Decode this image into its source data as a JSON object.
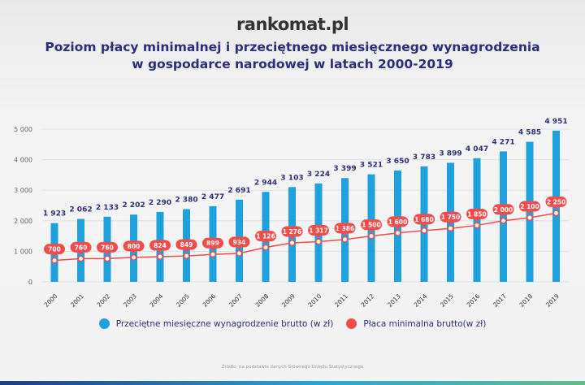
{
  "logo": "rankomat.pl",
  "title_line1": "Poziom płacy minimalnej i przeciętnego miesięcznego wynagrodzenia",
  "title_line2": "w gospodarce narodowej w latach 2000-2019",
  "source": "Źródło: na podstawie danych Głównego Urzędu Statystycznego",
  "chart_data": {
    "type": "bar+line",
    "categories": [
      "2000",
      "2001",
      "2002",
      "2003",
      "2004",
      "2005",
      "2006",
      "2007",
      "2008",
      "2009",
      "2010",
      "2011",
      "2012",
      "2013",
      "2014",
      "2015",
      "2016",
      "2017",
      "2018",
      "2019"
    ],
    "series": [
      {
        "name": "Przeciętne miesięczne wynagrodzenie brutto (w zł)",
        "type": "bar",
        "color": "#1ea1dc",
        "values": [
          1923,
          2062,
          2133,
          2202,
          2290,
          2380,
          2477,
          2691,
          2944,
          3103,
          3224,
          3399,
          3521,
          3650,
          3783,
          3899,
          4047,
          4271,
          4585,
          4951
        ]
      },
      {
        "name": "Płaca minimalna brutto(w zł)",
        "type": "line",
        "color": "#f44b4b",
        "values": [
          700,
          760,
          760,
          800,
          824,
          849,
          899,
          934,
          1126,
          1276,
          1317,
          1386,
          1500,
          1600,
          1680,
          1750,
          1850,
          2000,
          2100,
          2250
        ]
      }
    ],
    "ylim": [
      0,
      5000
    ],
    "yticks": [
      "0",
      "1 000",
      "2 000",
      "3 000",
      "4 000",
      "5 000"
    ],
    "grid": true,
    "legend": "bottom"
  }
}
